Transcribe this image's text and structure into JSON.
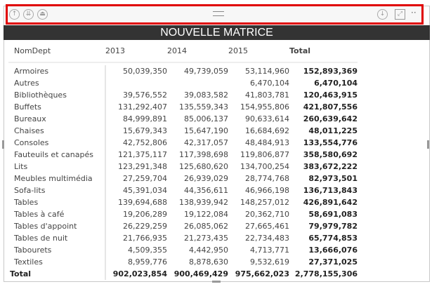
{
  "toolbar": {
    "icons": [
      "drill-up-icon",
      "drill-down-all-icon",
      "expand-hierarchy-icon",
      "drill-mode-icon",
      "focus-mode-icon",
      "more-options-icon"
    ]
  },
  "visual": {
    "title": "NOUVELLE MATRICE"
  },
  "matrix": {
    "headers": [
      "NomDept",
      "2013",
      "2014",
      "2015",
      "Total"
    ],
    "rows": [
      {
        "name": "Armoires",
        "v": [
          "50,039,350",
          "49,739,059",
          "53,114,960",
          "152,893,369"
        ]
      },
      {
        "name": "Autres",
        "v": [
          "",
          "",
          "6,470,104",
          "6,470,104"
        ]
      },
      {
        "name": "Bibliothèques",
        "v": [
          "39,576,552",
          "39,083,582",
          "41,803,781",
          "120,463,915"
        ]
      },
      {
        "name": "Buffets",
        "v": [
          "131,292,407",
          "135,559,343",
          "154,955,806",
          "421,807,556"
        ]
      },
      {
        "name": "Bureaux",
        "v": [
          "84,999,891",
          "85,006,137",
          "90,633,614",
          "260,639,642"
        ]
      },
      {
        "name": "Chaises",
        "v": [
          "15,679,343",
          "15,647,190",
          "16,684,692",
          "48,011,225"
        ]
      },
      {
        "name": "Consoles",
        "v": [
          "42,752,806",
          "42,317,057",
          "48,484,913",
          "133,554,776"
        ]
      },
      {
        "name": "Fauteuils et canapés",
        "v": [
          "121,375,117",
          "117,398,698",
          "119,806,877",
          "358,580,692"
        ]
      },
      {
        "name": "Lits",
        "v": [
          "123,291,348",
          "125,680,620",
          "134,700,254",
          "383,672,222"
        ]
      },
      {
        "name": "Meubles multimédia",
        "v": [
          "27,259,704",
          "26,939,029",
          "28,774,768",
          "82,973,501"
        ]
      },
      {
        "name": "Sofa-lits",
        "v": [
          "45,391,034",
          "44,356,611",
          "46,966,198",
          "136,713,843"
        ]
      },
      {
        "name": "Tables",
        "v": [
          "139,694,688",
          "138,939,942",
          "148,257,012",
          "426,891,642"
        ]
      },
      {
        "name": "Tables à café",
        "v": [
          "19,206,289",
          "19,122,084",
          "20,362,710",
          "58,691,083"
        ]
      },
      {
        "name": "Tables d'appoint",
        "v": [
          "26,229,259",
          "26,085,062",
          "27,665,461",
          "79,979,782"
        ]
      },
      {
        "name": "Tables de nuit",
        "v": [
          "21,766,935",
          "21,273,435",
          "22,734,483",
          "65,774,853"
        ]
      },
      {
        "name": "Tabourets",
        "v": [
          "4,509,355",
          "4,442,950",
          "4,713,771",
          "13,666,076"
        ]
      },
      {
        "name": "Textiles",
        "v": [
          "8,959,776",
          "8,878,630",
          "9,532,619",
          "27,371,025"
        ]
      }
    ],
    "total": {
      "name": "Total",
      "v": [
        "902,023,854",
        "900,469,429",
        "975,662,023",
        "2,778,155,306"
      ]
    }
  }
}
